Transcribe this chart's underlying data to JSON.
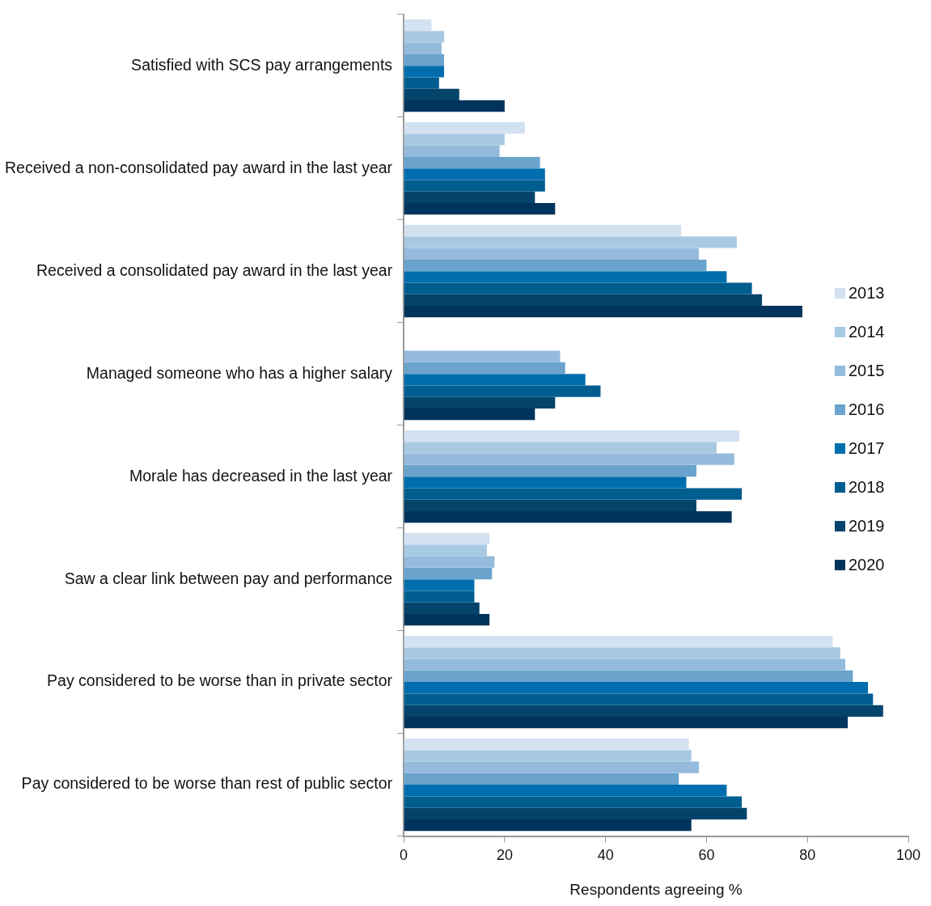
{
  "chart_data": {
    "type": "bar",
    "orientation": "horizontal",
    "xlabel": "Respondents agreeing %",
    "categories": [
      "Satisfied with SCS pay arrangements",
      "Received a non-consolidated pay award in the last year",
      "Received a consolidated pay award in the last year",
      "Managed someone who has a higher salary",
      "Morale has decreased in the last year",
      "Saw a clear link between pay and performance",
      "Pay considered to be worse than in private sector",
      "Pay considered to be worse than rest of public sector"
    ],
    "series": [
      {
        "name": "2013",
        "color": "#d3e2f1",
        "values": [
          5.5,
          24,
          55,
          null,
          66.5,
          17,
          85,
          56.5
        ]
      },
      {
        "name": "2014",
        "color": "#a8c9e2",
        "values": [
          8,
          20,
          66,
          null,
          62,
          16.5,
          86.5,
          57
        ]
      },
      {
        "name": "2015",
        "color": "#94bbdc",
        "values": [
          7.5,
          19,
          58.5,
          31,
          65.5,
          18,
          87.5,
          58.5
        ]
      },
      {
        "name": "2016",
        "color": "#6aa3cc",
        "values": [
          8,
          27,
          60,
          32,
          58,
          17.5,
          89,
          54.5
        ]
      },
      {
        "name": "2017",
        "color": "#006eae",
        "values": [
          8,
          28,
          64,
          36,
          56,
          14,
          92,
          64
        ]
      },
      {
        "name": "2018",
        "color": "#005d90",
        "values": [
          7,
          28,
          69,
          39,
          67,
          14,
          93,
          67
        ]
      },
      {
        "name": "2019",
        "color": "#05446a",
        "values": [
          11,
          26,
          71,
          30,
          58,
          15,
          95,
          68
        ]
      },
      {
        "name": "2020",
        "color": "#00345c",
        "values": [
          20,
          30,
          79,
          26,
          65,
          17,
          88,
          57
        ]
      }
    ],
    "xlim": [
      0,
      100
    ],
    "xticks": [
      0,
      20,
      40,
      60,
      80,
      100
    ],
    "grid": false,
    "legend": "right"
  }
}
